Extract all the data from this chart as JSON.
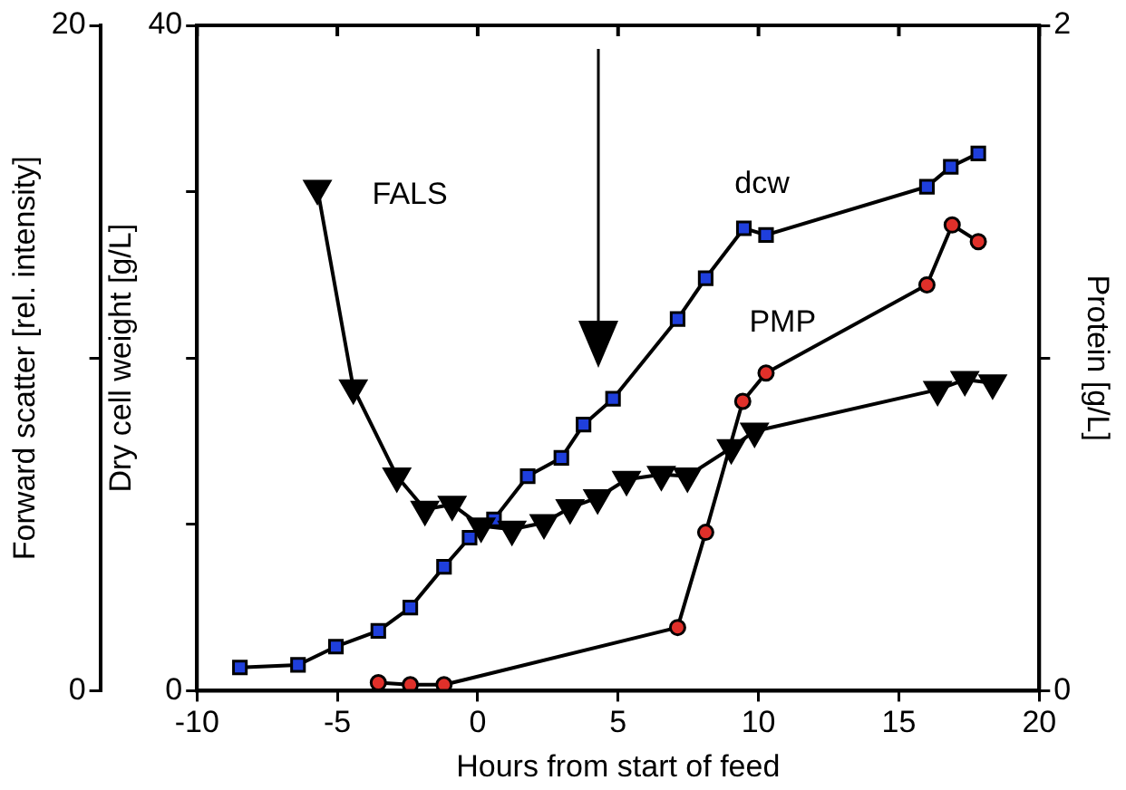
{
  "chart_data": {
    "type": "line",
    "xlabel": "Hours from start of feed",
    "ylabel": "Dry cell weight [g/L]",
    "y2label": "Protein [g/L]",
    "y3label": "Forward scatter [rel. intensity]",
    "xlim": [
      -10,
      20
    ],
    "xticks": [
      -10,
      -5,
      0,
      5,
      10,
      15,
      20
    ],
    "ylim": [
      0,
      40
    ],
    "yticks": [
      0,
      {
        "value": 10,
        "label": null
      },
      {
        "value": 20,
        "label": null
      },
      {
        "value": 30,
        "label": null
      },
      40
    ],
    "y2lim": [
      0,
      2
    ],
    "y2ticks": [
      0,
      {
        "value": 1,
        "label": null
      },
      2
    ],
    "y3lim": [
      0,
      20
    ],
    "y3ticks": [
      0,
      {
        "value": 10,
        "label": null
      },
      20
    ],
    "grid": false,
    "legend": false,
    "line_style": "solid",
    "series": [
      {
        "name": "FALS",
        "color": "#000000",
        "marker": "triangle",
        "axis": "y3",
        "x": [
          -5.71,
          -4.43,
          -2.88,
          -1.88,
          -0.91,
          0.12,
          1.22,
          2.36,
          3.29,
          4.27,
          5.3,
          6.54,
          7.47,
          9.03,
          9.86,
          16.38,
          17.35,
          18.34
        ],
        "values": [
          15.1,
          9.1,
          6.45,
          5.45,
          5.6,
          4.95,
          4.85,
          5.05,
          5.5,
          5.8,
          6.35,
          6.5,
          6.45,
          7.3,
          7.8,
          9.05,
          9.35,
          9.25
        ]
      },
      {
        "name": "dcw",
        "color": "#1f3fdc",
        "marker": "square",
        "x": [
          -8.47,
          -6.4,
          -5.05,
          -3.54,
          -2.4,
          -1.2,
          -0.29,
          0.58,
          1.78,
          2.98,
          3.77,
          4.82,
          7.12,
          8.12,
          9.48,
          10.27,
          16.0,
          16.85,
          17.83
        ],
        "values": [
          1.4,
          1.55,
          2.65,
          3.6,
          5.0,
          7.45,
          9.2,
          10.3,
          12.9,
          14.0,
          16.0,
          17.55,
          22.35,
          24.8,
          27.8,
          27.4,
          30.3,
          31.5,
          32.3
        ]
      },
      {
        "name": "PMP",
        "color": "#e0302a",
        "marker": "circle",
        "axis": "y2",
        "x": [
          -3.54,
          -2.4,
          -1.2,
          7.12,
          8.12,
          9.44,
          10.27,
          16.0,
          16.9,
          17.83
        ],
        "values": [
          0.024,
          0.018,
          0.018,
          0.19,
          0.476,
          0.87,
          0.955,
          1.22,
          1.4,
          1.35
        ]
      }
    ]
  }
}
